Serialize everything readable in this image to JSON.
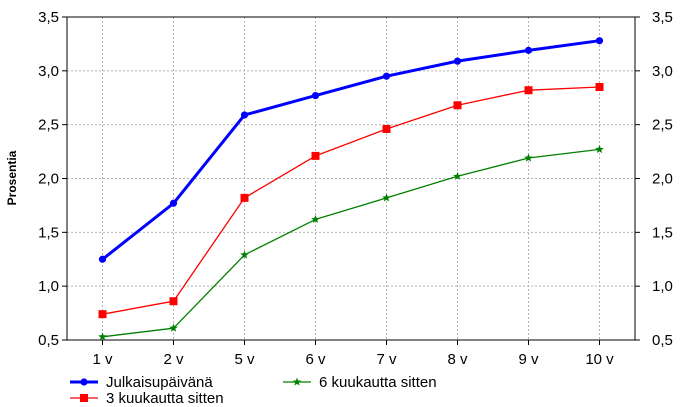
{
  "chart_data": {
    "type": "line",
    "categories": [
      "1 v",
      "2 v",
      "5 v",
      "6 v",
      "7 v",
      "8 v",
      "9 v",
      "10 v"
    ],
    "ylabel": "Prosentia",
    "ylim": [
      0.5,
      3.5
    ],
    "yticks": [
      "0,5",
      "1,0",
      "1,5",
      "2,0",
      "2,5",
      "3,0",
      "3,5"
    ],
    "ytick_values": [
      0.5,
      1.0,
      1.5,
      2.0,
      2.5,
      3.0,
      3.5
    ],
    "grid": true,
    "right_axis_mirrored": true,
    "legend_position": "bottom-left",
    "series": [
      {
        "name": "Julkaisupäivänä",
        "color": "#0000ff",
        "marker": "circle",
        "values": [
          1.25,
          1.77,
          2.59,
          2.77,
          2.95,
          3.09,
          3.19,
          3.28
        ]
      },
      {
        "name": "3 kuukautta sitten",
        "color": "#ff0000",
        "marker": "square",
        "values": [
          0.74,
          0.86,
          1.82,
          2.21,
          2.46,
          2.68,
          2.82,
          2.85
        ]
      },
      {
        "name": "6 kuukautta sitten",
        "color": "#008000",
        "marker": "star",
        "values": [
          0.53,
          0.61,
          1.29,
          1.62,
          1.82,
          2.02,
          2.19,
          2.27
        ]
      }
    ]
  }
}
